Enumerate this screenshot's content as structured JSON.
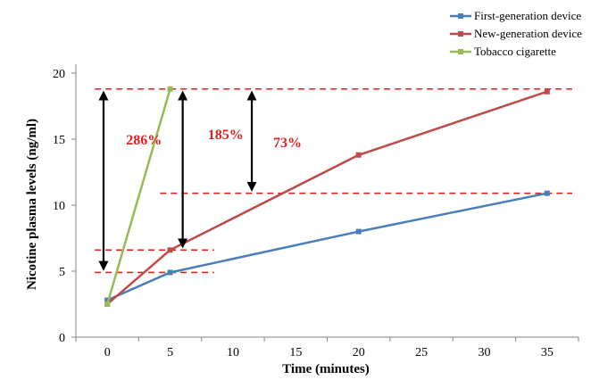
{
  "chart_data": {
    "type": "line",
    "title": "",
    "xlabel": "Time (minutes)",
    "ylabel": "Nicotine plasma levels (ng/ml)",
    "xlim": [
      -2.5,
      37.5
    ],
    "ylim": [
      0,
      20
    ],
    "x_ticks": [
      0,
      5,
      10,
      15,
      20,
      25,
      30,
      35
    ],
    "y_ticks": [
      0,
      5,
      10,
      15,
      20
    ],
    "grid": false,
    "legend_position": "top-right",
    "series": [
      {
        "name": "First-generation device",
        "color": "#4a7ebb",
        "x": [
          0,
          5,
          20,
          35
        ],
        "y": [
          2.8,
          4.9,
          8.0,
          10.9
        ]
      },
      {
        "name": "New-generation device",
        "color": "#be4b48",
        "x": [
          0,
          5,
          20,
          35
        ],
        "y": [
          2.5,
          6.6,
          13.8,
          18.6
        ]
      },
      {
        "name": "Tobacco cigarette",
        "color": "#98b954",
        "x": [
          0,
          5
        ],
        "y": [
          2.5,
          18.8
        ]
      }
    ],
    "reference_lines": [
      {
        "y": 18.8,
        "x_from": -1.0,
        "x_to": 37.0
      },
      {
        "y": 10.9,
        "x_from": 4.2,
        "x_to": 37.0
      },
      {
        "y": 6.6,
        "x_from": -1.0,
        "x_to": 8.5
      },
      {
        "y": 4.9,
        "x_from": -1.0,
        "x_to": 8.5
      }
    ],
    "reference_line_color": "#e02020",
    "arrows": [
      {
        "x": -0.3,
        "y_from": 4.9,
        "y_to": 18.8
      },
      {
        "x": 6.0,
        "y_from": 6.6,
        "y_to": 18.8
      },
      {
        "x": 11.5,
        "y_from": 10.9,
        "y_to": 18.8
      }
    ],
    "annotations": [
      {
        "text": "286%",
        "x": 1.5,
        "y": 14.6,
        "color": "#e02020"
      },
      {
        "text": "185%",
        "x": 8.0,
        "y": 15.0,
        "color": "#e02020"
      },
      {
        "text": "73%",
        "x": 13.2,
        "y": 14.4,
        "color": "#e02020"
      }
    ]
  }
}
